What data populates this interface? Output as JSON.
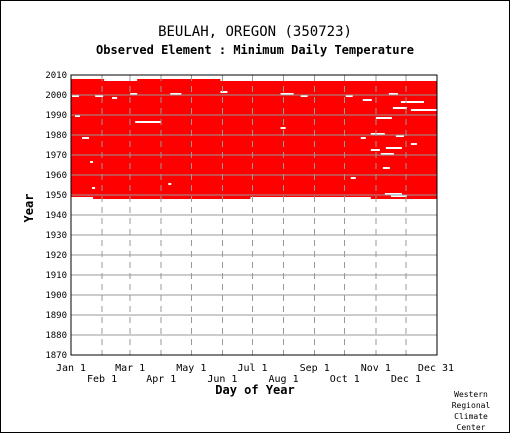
{
  "header": {
    "title": "BEULAH, OREGON   (350723)",
    "subtitle": "Observed Element : Minimum Daily Temperature"
  },
  "credit": [
    "Western",
    "Regional",
    "Climate",
    "Center"
  ],
  "chart_data": {
    "type": "heatmap",
    "title": "BEULAH, OREGON   (350723)",
    "subtitle": "Observed Element : Minimum Daily Temperature",
    "xlabel": "Day of Year",
    "ylabel": "Year",
    "ylim": [
      1870,
      2010
    ],
    "y_ticks": [
      1870,
      1880,
      1890,
      1900,
      1910,
      1920,
      1930,
      1940,
      1950,
      1960,
      1970,
      1980,
      1990,
      2000,
      2010
    ],
    "x_ticks_upper": [
      {
        "label": "Jan 1",
        "day": 1
      },
      {
        "label": "Mar 1",
        "day": 60
      },
      {
        "label": "May 1",
        "day": 121
      },
      {
        "label": "Jul 1",
        "day": 182
      },
      {
        "label": "Sep 1",
        "day": 244
      },
      {
        "label": "Nov 1",
        "day": 305
      },
      {
        "label": "Dec 31",
        "day": 365
      }
    ],
    "x_ticks_lower": [
      {
        "label": "Feb 1",
        "day": 32
      },
      {
        "label": "Apr 1",
        "day": 91
      },
      {
        "label": "Jun 1",
        "day": 152
      },
      {
        "label": "Aug 1",
        "day": 213
      },
      {
        "label": "Oct 1",
        "day": 274
      },
      {
        "label": "Dec 1",
        "day": 335
      }
    ],
    "record_start_year": 1948,
    "record_end_year": 2007,
    "colors": {
      "observed": "#ff0000",
      "missing": "#ffffff",
      "grid": "#999999"
    },
    "missing_segments": [
      {
        "year": 1999,
        "start_day": 2,
        "end_day": 8
      },
      {
        "year": 1999,
        "start_day": 25,
        "end_day": 32
      },
      {
        "year": 1998,
        "start_day": 42,
        "end_day": 46
      },
      {
        "year": 2000,
        "start_day": 60,
        "end_day": 66
      },
      {
        "year": 2000,
        "start_day": 100,
        "end_day": 110
      },
      {
        "year": 2001,
        "start_day": 150,
        "end_day": 156
      },
      {
        "year": 2000,
        "start_day": 210,
        "end_day": 222
      },
      {
        "year": 1999,
        "start_day": 230,
        "end_day": 236
      },
      {
        "year": 1999,
        "start_day": 275,
        "end_day": 281
      },
      {
        "year": 2000,
        "start_day": 318,
        "end_day": 326
      },
      {
        "year": 1997,
        "start_day": 292,
        "end_day": 300
      },
      {
        "year": 1996,
        "start_day": 330,
        "end_day": 352
      },
      {
        "year": 1993,
        "start_day": 322,
        "end_day": 335
      },
      {
        "year": 1992,
        "start_day": 340,
        "end_day": 365
      },
      {
        "year": 1989,
        "start_day": 5,
        "end_day": 9
      },
      {
        "year": 1988,
        "start_day": 305,
        "end_day": 320
      },
      {
        "year": 1986,
        "start_day": 65,
        "end_day": 90
      },
      {
        "year": 1983,
        "start_day": 210,
        "end_day": 214
      },
      {
        "year": 1980,
        "start_day": 300,
        "end_day": 313
      },
      {
        "year": 1979,
        "start_day": 325,
        "end_day": 332
      },
      {
        "year": 1978,
        "start_day": 12,
        "end_day": 18
      },
      {
        "year": 1978,
        "start_day": 290,
        "end_day": 294
      },
      {
        "year": 1975,
        "start_day": 340,
        "end_day": 345
      },
      {
        "year": 1973,
        "start_day": 315,
        "end_day": 330
      },
      {
        "year": 1972,
        "start_day": 300,
        "end_day": 308
      },
      {
        "year": 1970,
        "start_day": 310,
        "end_day": 322
      },
      {
        "year": 1966,
        "start_day": 20,
        "end_day": 22
      },
      {
        "year": 1963,
        "start_day": 312,
        "end_day": 318
      },
      {
        "year": 1958,
        "start_day": 280,
        "end_day": 284
      },
      {
        "year": 1955,
        "start_day": 98,
        "end_day": 100
      },
      {
        "year": 1953,
        "start_day": 22,
        "end_day": 24
      },
      {
        "year": 1950,
        "start_day": 314,
        "end_day": 330
      },
      {
        "year": 1949,
        "start_day": 320,
        "end_day": 335
      },
      {
        "year": 1948,
        "start_day": 1,
        "end_day": 22
      },
      {
        "year": 1948,
        "start_day": 180,
        "end_day": 299
      },
      {
        "year": 2007,
        "start_day": 34,
        "end_day": 66
      },
      {
        "year": 2007,
        "start_day": 150,
        "end_day": 365
      }
    ]
  }
}
